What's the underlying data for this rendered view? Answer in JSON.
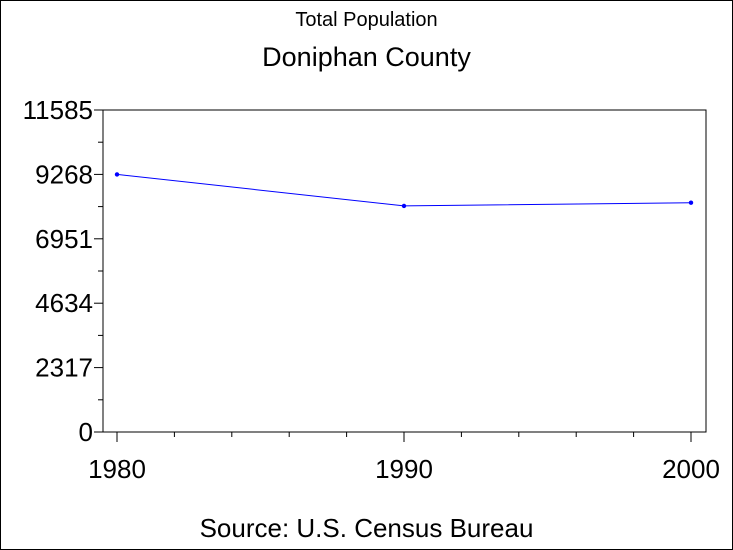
{
  "chart_data": {
    "type": "line",
    "supertitle": "Total Population",
    "title": "Doniphan County",
    "footnote": "Source: U.S. Census Bureau",
    "x": [
      1980,
      1990,
      2000
    ],
    "series": [
      {
        "values": [
          9268,
          8134,
          8249
        ],
        "color": "#0000ff"
      }
    ],
    "xlim": [
      1980,
      2000
    ],
    "ylim": [
      0,
      11585
    ],
    "yticks": [
      "0",
      "2317",
      "4634",
      "6951",
      "9268",
      "11585"
    ],
    "xticks": [
      "1980",
      "1990",
      "2000"
    ],
    "grid": false
  }
}
